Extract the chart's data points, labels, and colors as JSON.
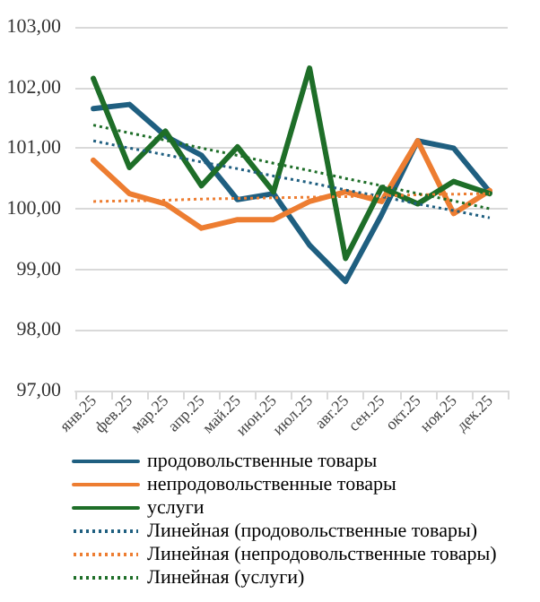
{
  "chart_data": {
    "type": "line",
    "categories": [
      "янв.25",
      "фев.25",
      "мар.25",
      "апр.25",
      "май.25",
      "июн.25",
      "июл.25",
      "авг.25",
      "сен.25",
      "окт.25",
      "ноя.25",
      "дек.25"
    ],
    "ylim": [
      97,
      103
    ],
    "yticks": [
      {
        "value": 97,
        "label": "97,00"
      },
      {
        "value": 98,
        "label": "98,00"
      },
      {
        "value": 99,
        "label": "99,00"
      },
      {
        "value": 100,
        "label": "100,00"
      },
      {
        "value": 101,
        "label": "101,00"
      },
      {
        "value": 102,
        "label": "102,00"
      },
      {
        "value": 103,
        "label": "103,00"
      }
    ],
    "grid": "y",
    "legend": "bottom",
    "marker": "none",
    "series": [
      {
        "name": "продовольственные товары",
        "color": "#1f5f80",
        "line_style": "solid",
        "values": [
          101.65,
          101.72,
          101.2,
          100.88,
          100.15,
          100.25,
          99.4,
          98.8,
          99.9,
          101.12,
          101.0,
          100.28
        ]
      },
      {
        "name": "непродовольственные товары",
        "color": "#ed7d31",
        "line_style": "solid",
        "values": [
          100.8,
          100.25,
          100.08,
          99.68,
          99.82,
          99.82,
          100.12,
          100.28,
          100.12,
          101.12,
          99.92,
          100.3
        ]
      },
      {
        "name": "услуги",
        "color": "#1e6e28",
        "line_style": "solid",
        "values": [
          102.15,
          100.68,
          101.28,
          100.38,
          101.02,
          100.28,
          102.32,
          99.18,
          100.35,
          100.08,
          100.45,
          100.25
        ]
      },
      {
        "name": "Линейная (продовольственные товары)",
        "color": "#1f5f80",
        "line_style": "dotted",
        "values": [
          101.12,
          101.0,
          100.89,
          100.77,
          100.66,
          100.54,
          100.43,
          100.31,
          100.2,
          100.08,
          99.97,
          99.85
        ]
      },
      {
        "name": "Линейная (непродовольственные товары)",
        "color": "#ed7d31",
        "line_style": "dotted",
        "values": [
          100.12,
          100.13,
          100.14,
          100.16,
          100.17,
          100.18,
          100.19,
          100.2,
          100.21,
          100.23,
          100.24,
          100.25
        ]
      },
      {
        "name": "Линейная (услуги)",
        "color": "#1e6e28",
        "line_style": "dotted",
        "values": [
          101.38,
          101.25,
          101.13,
          101.0,
          100.88,
          100.75,
          100.63,
          100.5,
          100.38,
          100.25,
          100.13,
          100.0
        ]
      }
    ]
  }
}
